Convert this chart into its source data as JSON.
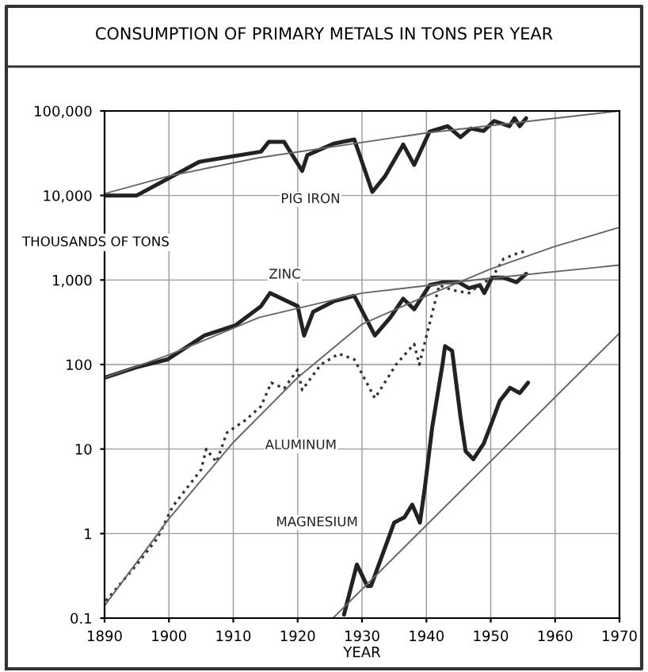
{
  "chart_data": {
    "type": "line",
    "title": "CONSUMPTION OF PRIMARY METALS IN TONS PER YEAR",
    "xlabel": "YEAR",
    "ylabel": "THOUSANDS OF TONS",
    "log": "y",
    "xlim": [
      1890,
      1970
    ],
    "xticks": [
      1890,
      1900,
      1910,
      1920,
      1930,
      1940,
      1950,
      1960,
      1970
    ],
    "ylim": [
      0.1,
      100000
    ],
    "yticks": [
      {
        "value": 0.1,
        "label": "0.1"
      },
      1,
      10,
      100,
      {
        "value": 1000,
        "label": "1,000"
      },
      {
        "value": 10000,
        "label": "10,000"
      },
      {
        "value": 100000,
        "label": "100,000"
      }
    ],
    "grid": true,
    "legend": false,
    "marker": "none",
    "series": [
      {
        "name": "PIG IRON",
        "color": "#222222",
        "x": [
          1890,
          1895,
          1904.7,
          1914.3,
          1915.5,
          1917.9,
          1920.7,
          1921.5,
          1925.6,
          1928.8,
          1931.6,
          1933.6,
          1936.4,
          1938.1,
          1940.5,
          1943.3,
          1945.3,
          1946.9,
          1948.9,
          1950.5,
          1952.9,
          1953.7,
          1954.5,
          1955.5
        ],
        "values": [
          10000,
          10000,
          25000,
          33000,
          43000,
          43000,
          19500,
          30000,
          41000,
          46000,
          11000,
          17000,
          40000,
          23000,
          57000,
          66000,
          49000,
          62000,
          58000,
          76000,
          66000,
          82000,
          66000,
          82000
        ]
      },
      {
        "color": "#666666",
        "line_style": "solid",
        "x": [
          1890,
          1900,
          1914,
          1940,
          1970
        ],
        "values": [
          10500,
          17000,
          28000,
          55000,
          100000
        ]
      },
      {
        "name": "ZINC",
        "color": "#222222",
        "x": [
          1890,
          1895,
          1899.8,
          1905.5,
          1910.3,
          1914.3,
          1915.7,
          1920,
          1921,
          1922.4,
          1925.6,
          1928.8,
          1932,
          1934.4,
          1936.4,
          1938.1,
          1940.5,
          1942.6,
          1945,
          1946.6,
          1948.3,
          1949,
          1950.2,
          1951.9,
          1954,
          1955.5
        ],
        "values": [
          70,
          93,
          115,
          220,
          290,
          490,
          700,
          490,
          220,
          420,
          560,
          650,
          220,
          360,
          600,
          450,
          870,
          940,
          940,
          800,
          870,
          700,
          1070,
          1070,
          940,
          1180
        ]
      },
      {
        "color": "#666666",
        "x": [
          1890,
          1900,
          1914,
          1930,
          1950,
          1970
        ],
        "values": [
          70,
          130,
          360,
          700,
          1050,
          1500
        ]
      },
      {
        "name": "ALUMINUM",
        "color": "#333333",
        "line_style": "dotted",
        "x": [
          1890.2,
          1895,
          1898.2,
          1900.6,
          1905,
          1905.8,
          1907.4,
          1909,
          1911.9,
          1914.3,
          1915.9,
          1917.9,
          1920,
          1920.7,
          1923.6,
          1926.4,
          1928.8,
          1932,
          1935.3,
          1938.1,
          1938.9,
          1942,
          1944,
          1946.6,
          1948.3,
          1950.2,
          1952,
          1954,
          1955.8
        ],
        "values": [
          0.16,
          0.43,
          0.88,
          2.1,
          5.7,
          10,
          7,
          15.6,
          22,
          32,
          61,
          52,
          87,
          50,
          100,
          134,
          115,
          40,
          100,
          175,
          100,
          870,
          760,
          700,
          870,
          1070,
          1780,
          2050,
          2250
        ]
      },
      {
        "color": "#666666",
        "x": [
          1890,
          1900,
          1910,
          1920,
          1930,
          1940,
          1950,
          1960,
          1970
        ],
        "values": [
          0.14,
          1.5,
          12,
          70,
          300,
          650,
          1350,
          2500,
          4200
        ]
      },
      {
        "name": "MAGNESIUM",
        "color": "#222222",
        "x": [
          1927.2,
          1929.2,
          1930.8,
          1931.4,
          1935,
          1936.6,
          1937.8,
          1939,
          1939.8,
          1940.9,
          1942.5,
          1942.9,
          1944,
          1945.3,
          1946.1,
          1947.3,
          1948.9,
          1950.2,
          1951.4,
          1953,
          1954.5,
          1955.8
        ],
        "values": [
          0.11,
          0.43,
          0.24,
          0.24,
          1.35,
          1.56,
          2.2,
          1.35,
          3.7,
          18,
          100,
          165,
          145,
          24,
          9.4,
          7.6,
          11.6,
          21,
          37,
          53,
          46,
          61
        ]
      },
      {
        "color": "#666666",
        "x": [
          1925.5,
          1970
        ],
        "values": [
          0.1,
          235
        ]
      }
    ]
  }
}
